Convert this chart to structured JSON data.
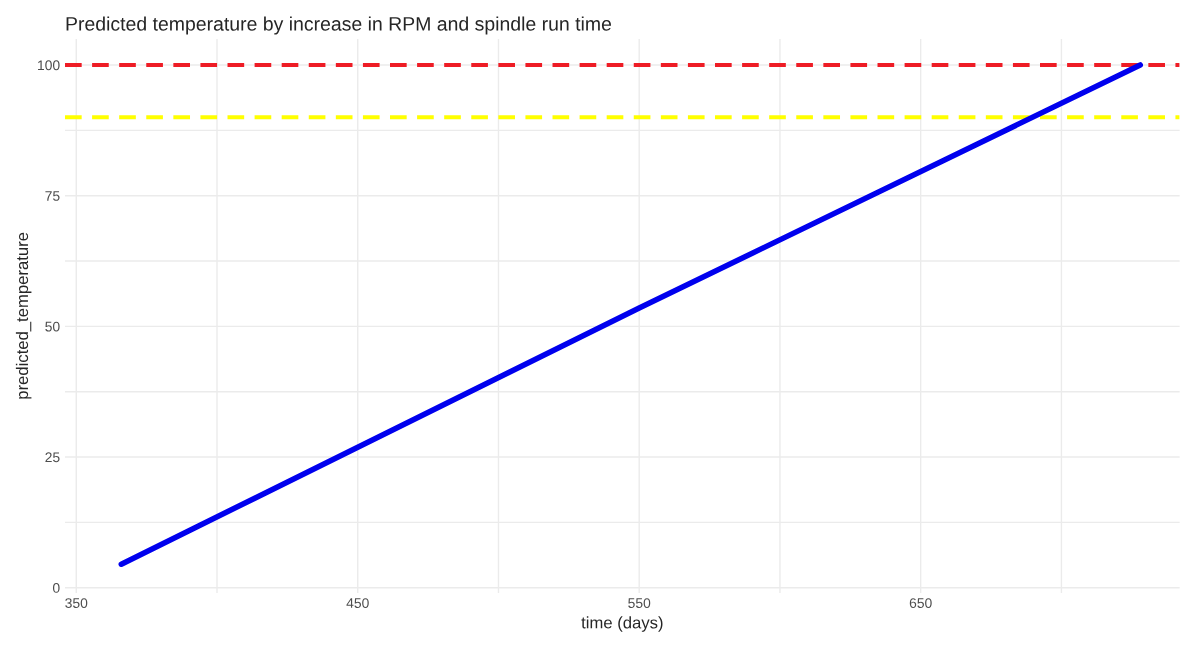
{
  "chart_data": {
    "type": "line",
    "title": "Predicted temperature by increase in RPM and spindle run time",
    "xlabel": "time (days)",
    "ylabel": "predicted_temperature",
    "series": [
      {
        "color": "#0000ee",
        "x": [
          366,
          550,
          728
        ],
        "values": [
          4.5,
          53.5,
          100
        ]
      }
    ],
    "xlim": [
      346,
      742
    ],
    "ylim": [
      -1,
      105
    ],
    "xticks": [
      350,
      {
        "value": 400,
        "label": null
      },
      450,
      {
        "value": 500,
        "label": null
      },
      550,
      {
        "value": 600,
        "label": null
      },
      650,
      {
        "value": 700,
        "label": null
      }
    ],
    "yticks": [
      0,
      {
        "value": 12.5,
        "label": null
      },
      25,
      {
        "value": 37.5,
        "label": null
      },
      50,
      {
        "value": 62.5,
        "label": null
      },
      75,
      {
        "value": 87.5,
        "label": null
      },
      100
    ],
    "ref_lines": [
      {
        "axis": "y",
        "value": 100,
        "color": "#ee1c25",
        "line_style": "dashed"
      },
      {
        "axis": "y",
        "value": 90,
        "color": "#ffff00",
        "line_style": "dashed"
      }
    ],
    "grid": true,
    "legend": false,
    "marker": "none",
    "line_style": "solid"
  }
}
